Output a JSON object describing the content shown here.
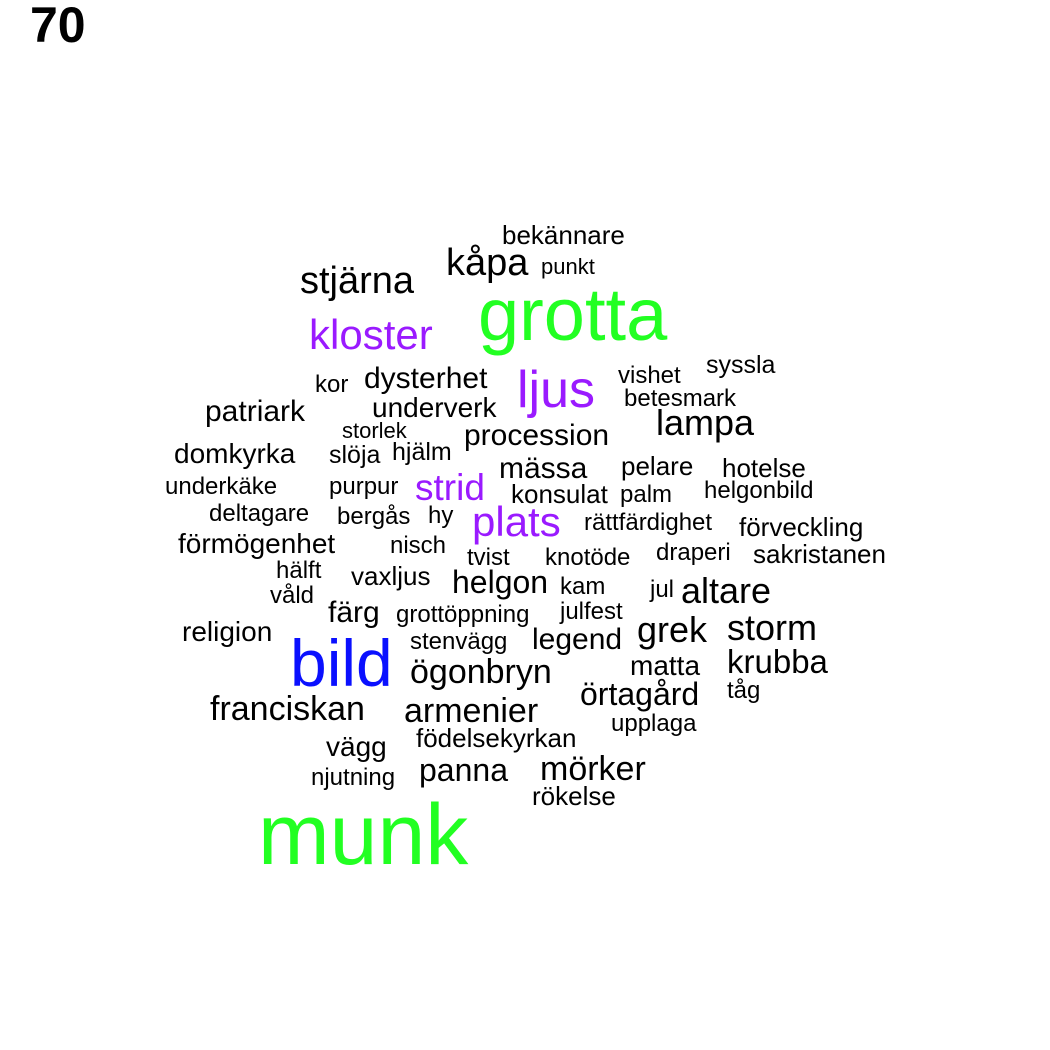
{
  "page_number": "70",
  "colors": {
    "black": "#000000",
    "green": "#22ff22",
    "purple": "#9a1aff",
    "blue": "#0a10ff"
  },
  "words": [
    {
      "text": "bekännare",
      "color": "black"
    },
    {
      "text": "kåpa",
      "color": "black"
    },
    {
      "text": "punkt",
      "color": "black"
    },
    {
      "text": "stjärna",
      "color": "black"
    },
    {
      "text": "grotta",
      "color": "green"
    },
    {
      "text": "kloster",
      "color": "purple"
    },
    {
      "text": "syssla",
      "color": "black"
    },
    {
      "text": "vishet",
      "color": "black"
    },
    {
      "text": "kor",
      "color": "black"
    },
    {
      "text": "dysterhet",
      "color": "black"
    },
    {
      "text": "ljus",
      "color": "purple"
    },
    {
      "text": "betesmark",
      "color": "black"
    },
    {
      "text": "patriark",
      "color": "black"
    },
    {
      "text": "underverk",
      "color": "black"
    },
    {
      "text": "lampa",
      "color": "black"
    },
    {
      "text": "storlek",
      "color": "black"
    },
    {
      "text": "procession",
      "color": "black"
    },
    {
      "text": "domkyrka",
      "color": "black"
    },
    {
      "text": "slöja",
      "color": "black"
    },
    {
      "text": "hjälm",
      "color": "black"
    },
    {
      "text": "mässa",
      "color": "black"
    },
    {
      "text": "pelare",
      "color": "black"
    },
    {
      "text": "hotelse",
      "color": "black"
    },
    {
      "text": "underkäke",
      "color": "black"
    },
    {
      "text": "purpur",
      "color": "black"
    },
    {
      "text": "strid",
      "color": "purple"
    },
    {
      "text": "konsulat",
      "color": "black"
    },
    {
      "text": "palm",
      "color": "black"
    },
    {
      "text": "helgonbild",
      "color": "black"
    },
    {
      "text": "deltagare",
      "color": "black"
    },
    {
      "text": "bergås",
      "color": "black"
    },
    {
      "text": "hy",
      "color": "black"
    },
    {
      "text": "plats",
      "color": "purple"
    },
    {
      "text": "rättfärdighet",
      "color": "black"
    },
    {
      "text": "förveckling",
      "color": "black"
    },
    {
      "text": "förmögenhet",
      "color": "black"
    },
    {
      "text": "nisch",
      "color": "black"
    },
    {
      "text": "tvist",
      "color": "black"
    },
    {
      "text": "knotöde",
      "color": "black"
    },
    {
      "text": "draperi",
      "color": "black"
    },
    {
      "text": "sakristanen",
      "color": "black"
    },
    {
      "text": "hälft",
      "color": "black"
    },
    {
      "text": "vaxljus",
      "color": "black"
    },
    {
      "text": "helgon",
      "color": "black"
    },
    {
      "text": "kam",
      "color": "black"
    },
    {
      "text": "jul",
      "color": "black"
    },
    {
      "text": "altare",
      "color": "black"
    },
    {
      "text": "våld",
      "color": "black"
    },
    {
      "text": "färg",
      "color": "black"
    },
    {
      "text": "grottöppning",
      "color": "black"
    },
    {
      "text": "julfest",
      "color": "black"
    },
    {
      "text": "religion",
      "color": "black"
    },
    {
      "text": "stenvägg",
      "color": "black"
    },
    {
      "text": "legend",
      "color": "black"
    },
    {
      "text": "grek",
      "color": "black"
    },
    {
      "text": "storm",
      "color": "black"
    },
    {
      "text": "bild",
      "color": "blue"
    },
    {
      "text": "ögonbryn",
      "color": "black"
    },
    {
      "text": "matta",
      "color": "black"
    },
    {
      "text": "krubba",
      "color": "black"
    },
    {
      "text": "örtagård",
      "color": "black"
    },
    {
      "text": "tåg",
      "color": "black"
    },
    {
      "text": "franciskan",
      "color": "black"
    },
    {
      "text": "armenier",
      "color": "black"
    },
    {
      "text": "upplaga",
      "color": "black"
    },
    {
      "text": "födelsekyrkan",
      "color": "black"
    },
    {
      "text": "vägg",
      "color": "black"
    },
    {
      "text": "njutning",
      "color": "black"
    },
    {
      "text": "panna",
      "color": "black"
    },
    {
      "text": "mörker",
      "color": "black"
    },
    {
      "text": "rökelse",
      "color": "black"
    },
    {
      "text": "munk",
      "color": "green"
    }
  ]
}
